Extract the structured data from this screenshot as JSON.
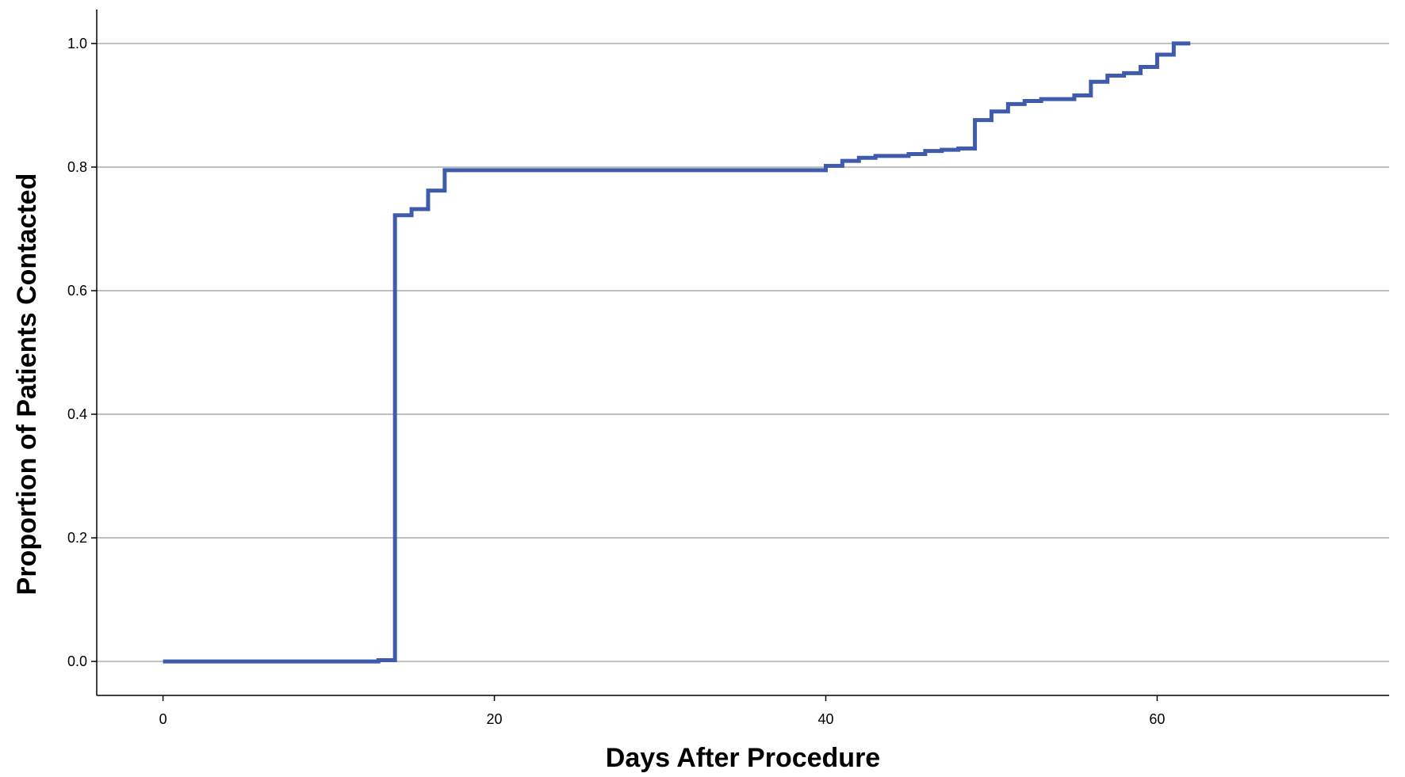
{
  "chart_data": {
    "type": "line",
    "step": true,
    "title": "",
    "xlabel": "Days After Procedure",
    "ylabel": "Proportion of Patients Contacted",
    "xlim": [
      -4,
      74
    ],
    "ylim": [
      -0.055,
      1.055
    ],
    "x_ticks": [
      0,
      20,
      40,
      60
    ],
    "x_tick_labels": [
      "0",
      "20",
      "40",
      "60"
    ],
    "y_ticks": [
      0.0,
      0.2,
      0.4,
      0.6,
      0.8,
      1.0
    ],
    "y_tick_labels": [
      "0.0",
      "0.2",
      "0.4",
      "0.6",
      "0.8",
      "1.0"
    ],
    "grid": "horizontal",
    "legend": "none",
    "colors": {
      "line": "#3f5bab",
      "grid": "#bfbfbf",
      "axis": "#000000"
    },
    "series": [
      {
        "x": [
          0,
          13,
          14,
          15,
          16,
          17,
          40,
          41,
          42,
          43,
          45,
          46,
          47,
          48,
          49,
          50,
          51,
          52,
          53,
          55,
          56,
          57,
          58,
          59,
          60,
          61,
          62
        ],
        "y": [
          0.0,
          0.002,
          0.722,
          0.732,
          0.762,
          0.795,
          0.802,
          0.81,
          0.815,
          0.818,
          0.821,
          0.826,
          0.828,
          0.83,
          0.876,
          0.89,
          0.902,
          0.907,
          0.91,
          0.916,
          0.938,
          0.948,
          0.952,
          0.962,
          0.982,
          1.0,
          1.0
        ]
      }
    ]
  }
}
